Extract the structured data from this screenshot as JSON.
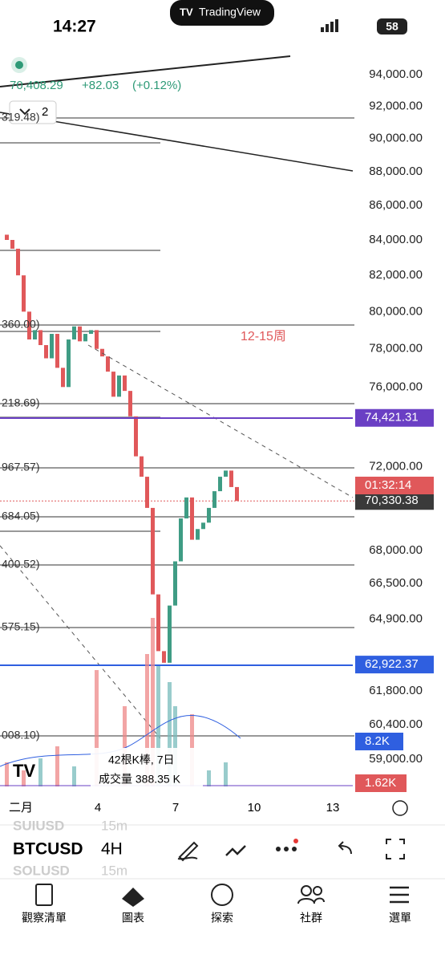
{
  "status": {
    "time": "14:27",
    "app": "TradingView",
    "battery": "58"
  },
  "chart": {
    "symbol_price": "70,408.29",
    "change": "+82.03",
    "change_pct": "(+0.12%)",
    "indicator_count": "2",
    "scale": "log",
    "ylim": [
      59000,
      94000
    ],
    "yticks": [
      {
        "value": 94000,
        "label": "94,000.00"
      },
      {
        "value": 92000,
        "label": "92,000.00"
      },
      {
        "value": 90000,
        "label": "90,000.00"
      },
      {
        "value": 88000,
        "label": "88,000.00"
      },
      {
        "value": 86000,
        "label": "86,000.00"
      },
      {
        "value": 84000,
        "label": "84,000.00"
      },
      {
        "value": 82000,
        "label": "82,000.00"
      },
      {
        "value": 80000,
        "label": "80,000.00"
      },
      {
        "value": 78000,
        "label": "78,000.00"
      },
      {
        "value": 76000,
        "label": "76,000.00"
      },
      {
        "value": 72000,
        "label": "72,000.00"
      },
      {
        "value": 68000,
        "label": "68,000.00"
      },
      {
        "value": 66500,
        "label": "66,500.00"
      },
      {
        "value": 64900,
        "label": "64,900.00"
      },
      {
        "value": 61800,
        "label": "61,800.00"
      },
      {
        "value": 60400,
        "label": "60,400.00"
      },
      {
        "value": 59000,
        "label": "59,000.00"
      }
    ],
    "price_tags": [
      {
        "value": 74421.31,
        "label": "74,421.31",
        "color": "#6a3fc4"
      },
      {
        "value": 70330.38,
        "label": "70,330.38",
        "color": "#3a3a3a"
      },
      {
        "value": 62922.37,
        "label": "62,922.37",
        "color": "#2f5fe0"
      }
    ],
    "countdown": "01:32:14",
    "volume_tag": "8.2K",
    "volume_tag2": "1.62K",
    "levels": [
      "319.48)",
      "360.00)",
      "218.69)",
      "967.57)",
      "684.05)",
      "400.52)",
      "575.15)",
      "008.10)"
    ],
    "annotation": "12-15周",
    "tooltip": {
      "line1": "42根K棒, 7日",
      "line2": "成交量 388.35 K"
    },
    "xlabels": [
      "二月",
      "4",
      "7",
      "10",
      "13"
    ],
    "candles": {
      "open": [
        84300,
        84000,
        83500,
        82000,
        80000,
        78500,
        79000,
        78200,
        77500,
        78800,
        77000,
        76000,
        78500,
        79200,
        78400,
        78800,
        79000,
        78000,
        77600,
        76800,
        75500,
        76600,
        75800,
        74500,
        72500,
        71500,
        70000,
        66000,
        63500,
        63000,
        65500,
        67500,
        69500,
        70500,
        68500,
        69000,
        69300,
        70000,
        70800,
        71500,
        71800,
        71000
      ],
      "close": [
        84000,
        83500,
        82000,
        80000,
        78500,
        79000,
        78200,
        77500,
        78800,
        77000,
        76000,
        78500,
        79200,
        78400,
        78800,
        79000,
        78000,
        77600,
        76800,
        75500,
        76600,
        75800,
        74500,
        72500,
        71500,
        70000,
        66000,
        63500,
        63000,
        65500,
        67500,
        69500,
        70500,
        68500,
        69000,
        69300,
        70000,
        70800,
        71500,
        71800,
        71000,
        70330
      ]
    }
  },
  "toolbar": {
    "symbol": "BTCUSD",
    "interval": "4H",
    "ghost1": "SUIUSD",
    "ghost1_int": "15m",
    "ghost2": "SOLUSD",
    "ghost2_int": "15m"
  },
  "nav": [
    "觀察清單",
    "圖表",
    "探索",
    "社群",
    "選單"
  ]
}
